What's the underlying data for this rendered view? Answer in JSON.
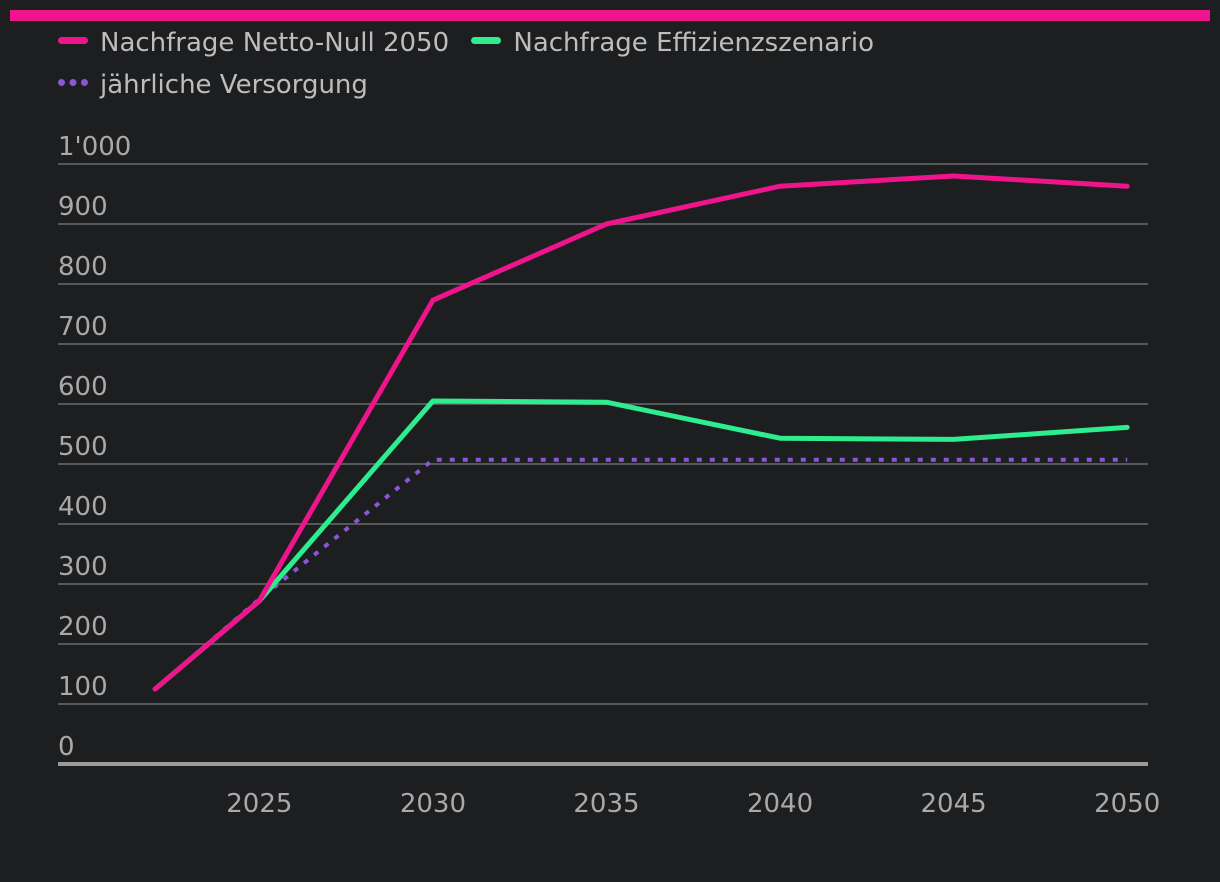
{
  "colors": {
    "accent": "#f0148c",
    "background": "#1d1e20",
    "grid": "#55585a",
    "axis": "#9a9a9a",
    "text": "#a9a9a9"
  },
  "chart_data": {
    "type": "line",
    "title": "",
    "xlabel": "",
    "ylabel": "",
    "x": [
      2022,
      2025,
      2030,
      2035,
      2040,
      2045,
      2050
    ],
    "xticks": [
      "2025",
      "2030",
      "2035",
      "2040",
      "2045",
      "2050"
    ],
    "yticks": [
      "0",
      "100",
      "200",
      "300",
      "400",
      "500",
      "600",
      "700",
      "800",
      "900",
      "1'000"
    ],
    "ylim": [
      0,
      1000
    ],
    "xlim": [
      2019.2,
      2050.6
    ],
    "grid": true,
    "legend_position": "top-left",
    "series": [
      {
        "name": "Nachfrage Netto-Null 2050",
        "color": "#f0148c",
        "style": "solid",
        "values": [
          125,
          272,
          773,
          900,
          963,
          980,
          963
        ]
      },
      {
        "name": "Nachfrage Effizienzszenario",
        "color": "#2ded8e",
        "style": "solid",
        "values": [
          125,
          272,
          605,
          603,
          543,
          541,
          561
        ]
      },
      {
        "name": "jährliche Versorgung",
        "color": "#8b55d6",
        "style": "dotted",
        "values": [
          125,
          275,
          507,
          507,
          507,
          507,
          507
        ]
      }
    ]
  }
}
